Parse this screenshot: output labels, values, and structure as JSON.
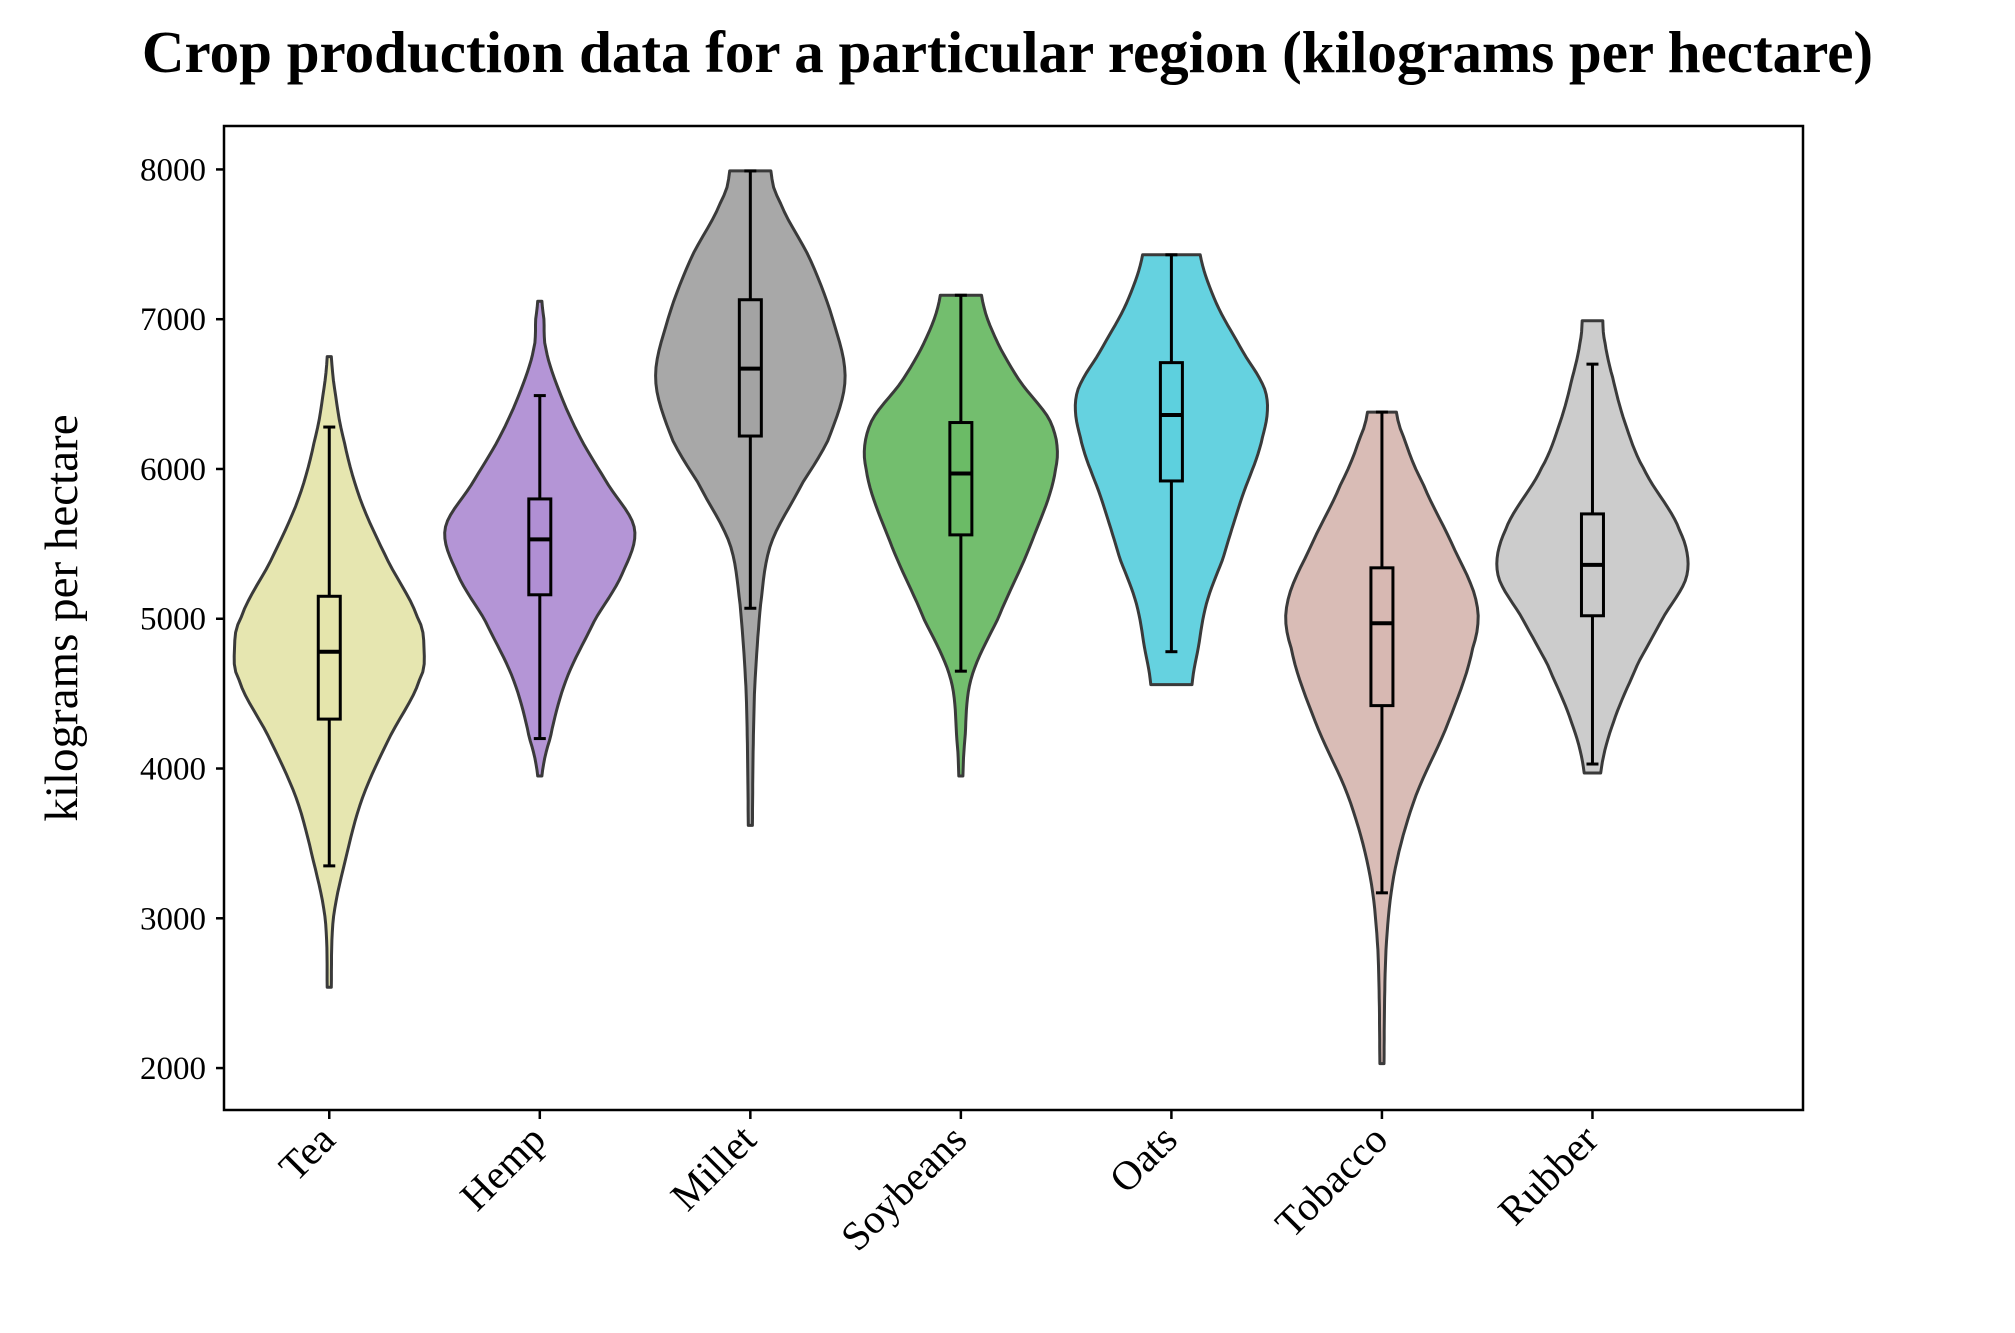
{
  "chart_data": {
    "type": "violin",
    "title": "Crop production data for a particular region (kilograms per hectare)",
    "xlabel": "",
    "ylabel": "kilograms per hectare",
    "ylim": [
      1720,
      8290
    ],
    "yticks": [
      2000,
      3000,
      4000,
      5000,
      6000,
      7000,
      8000
    ],
    "grid": false,
    "categories": [
      "Tea",
      "Hemp",
      "Millet",
      "Soybeans",
      "Oats",
      "Tobacco",
      "Rubber"
    ],
    "colors": [
      "#e5e5ac",
      "#b08fd4",
      "#a3a3a3",
      "#6bbb66",
      "#5dd0de",
      "#d7b8b2",
      "#c9c9c9"
    ],
    "series": [
      {
        "min": 2540,
        "max": 6750,
        "q1": 4330,
        "median": 4780,
        "q3": 5150,
        "whisker_low": 3350,
        "whisker_high": 6280,
        "profile": [
          [
            2540,
            0.01
          ],
          [
            3000,
            0.02
          ],
          [
            3400,
            0.08
          ],
          [
            3800,
            0.16
          ],
          [
            4200,
            0.29
          ],
          [
            4600,
            0.44
          ],
          [
            4800,
            0.46
          ],
          [
            5000,
            0.43
          ],
          [
            5400,
            0.28
          ],
          [
            5800,
            0.15
          ],
          [
            6200,
            0.07
          ],
          [
            6500,
            0.03
          ],
          [
            6750,
            0.01
          ]
        ]
      },
      {
        "min": 3950,
        "max": 7120,
        "q1": 5160,
        "median": 5530,
        "q3": 5800,
        "whisker_low": 4200,
        "whisker_high": 6490,
        "profile": [
          [
            3950,
            0.01
          ],
          [
            4200,
            0.05
          ],
          [
            4600,
            0.13
          ],
          [
            5000,
            0.27
          ],
          [
            5300,
            0.4
          ],
          [
            5600,
            0.46
          ],
          [
            5900,
            0.33
          ],
          [
            6200,
            0.2
          ],
          [
            6500,
            0.1
          ],
          [
            6800,
            0.03
          ],
          [
            7000,
            0.02
          ],
          [
            7120,
            0.01
          ]
        ]
      },
      {
        "min": 3620,
        "max": 7990,
        "q1": 6220,
        "median": 6670,
        "q3": 7130,
        "whisker_low": 5070,
        "whisker_high": 7990,
        "profile": [
          [
            3620,
            0.01
          ],
          [
            4500,
            0.02
          ],
          [
            5100,
            0.05
          ],
          [
            5500,
            0.1
          ],
          [
            5900,
            0.25
          ],
          [
            6200,
            0.38
          ],
          [
            6600,
            0.46
          ],
          [
            7000,
            0.4
          ],
          [
            7400,
            0.29
          ],
          [
            7800,
            0.14
          ],
          [
            7990,
            0.1
          ]
        ]
      },
      {
        "min": 3950,
        "max": 7160,
        "q1": 5560,
        "median": 5970,
        "q3": 6310,
        "whisker_low": 4650,
        "whisker_high": 7160,
        "profile": [
          [
            3950,
            0.01
          ],
          [
            4200,
            0.02
          ],
          [
            4600,
            0.05
          ],
          [
            5000,
            0.18
          ],
          [
            5500,
            0.34
          ],
          [
            6000,
            0.46
          ],
          [
            6300,
            0.44
          ],
          [
            6600,
            0.28
          ],
          [
            6900,
            0.16
          ],
          [
            7160,
            0.1
          ]
        ]
      },
      {
        "min": 4560,
        "max": 7430,
        "q1": 5920,
        "median": 6360,
        "q3": 6710,
        "whisker_low": 4780,
        "whisker_high": 7430,
        "profile": [
          [
            4560,
            0.1
          ],
          [
            4800,
            0.13
          ],
          [
            5100,
            0.17
          ],
          [
            5400,
            0.25
          ],
          [
            5800,
            0.34
          ],
          [
            6200,
            0.44
          ],
          [
            6500,
            0.46
          ],
          [
            6800,
            0.34
          ],
          [
            7100,
            0.22
          ],
          [
            7430,
            0.14
          ]
        ]
      },
      {
        "min": 2030,
        "max": 6380,
        "q1": 4420,
        "median": 4970,
        "q3": 5340,
        "whisker_low": 3170,
        "whisker_high": 6380,
        "profile": [
          [
            2030,
            0.01
          ],
          [
            2800,
            0.02
          ],
          [
            3300,
            0.06
          ],
          [
            3800,
            0.16
          ],
          [
            4300,
            0.32
          ],
          [
            4800,
            0.44
          ],
          [
            5100,
            0.46
          ],
          [
            5500,
            0.34
          ],
          [
            5900,
            0.2
          ],
          [
            6200,
            0.11
          ],
          [
            6380,
            0.07
          ]
        ]
      },
      {
        "min": 3970,
        "max": 6990,
        "q1": 5020,
        "median": 5360,
        "q3": 5700,
        "whisker_low": 4030,
        "whisker_high": 6700,
        "profile": [
          [
            3970,
            0.04
          ],
          [
            4300,
            0.1
          ],
          [
            4700,
            0.22
          ],
          [
            5000,
            0.34
          ],
          [
            5300,
            0.46
          ],
          [
            5600,
            0.42
          ],
          [
            6000,
            0.25
          ],
          [
            6300,
            0.16
          ],
          [
            6600,
            0.1
          ],
          [
            6850,
            0.06
          ],
          [
            6990,
            0.05
          ]
        ]
      }
    ]
  }
}
